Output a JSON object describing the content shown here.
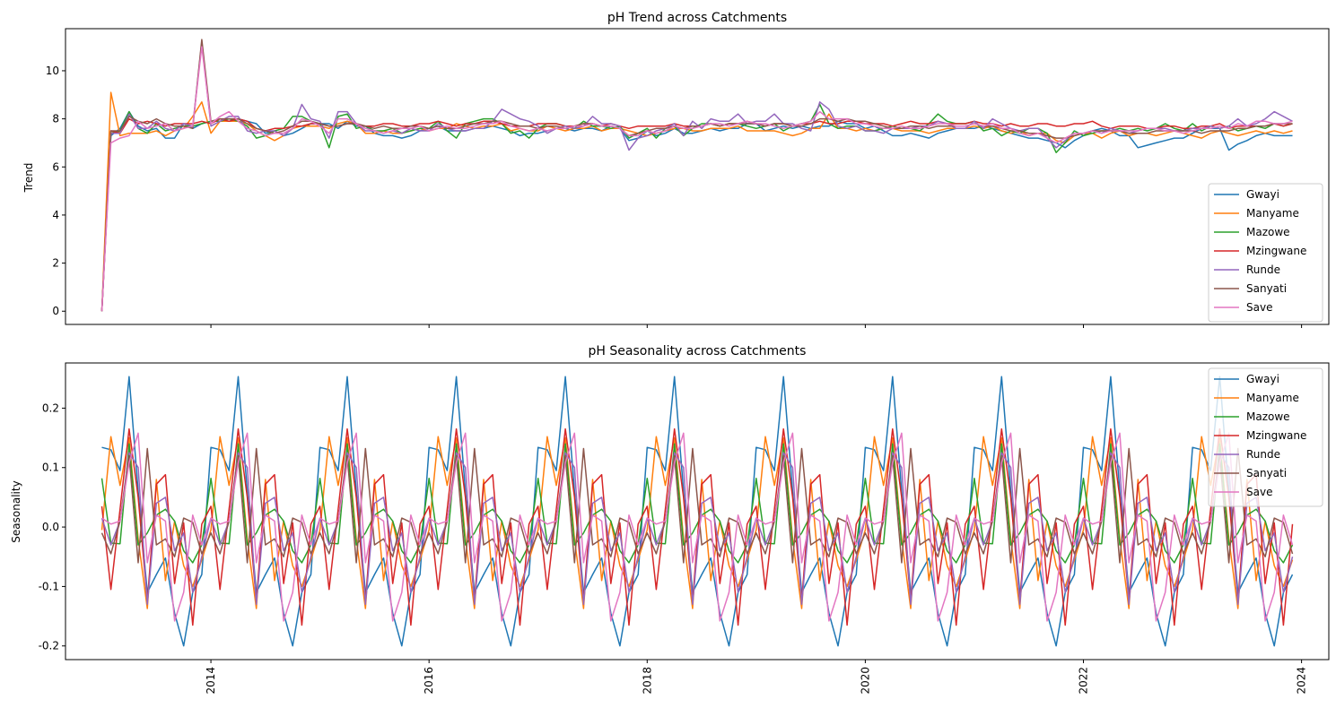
{
  "chart_data": [
    {
      "type": "line",
      "title": "pH Trend across Catchments",
      "xlabel": "",
      "ylabel": "Trend",
      "ylim": [
        -0.55,
        11.75
      ],
      "yticks": [
        0,
        2,
        4,
        6,
        8,
        10
      ],
      "xlim": [
        "2012-09",
        "2024-04"
      ],
      "x_start": "2013-01",
      "x_freq": "monthly",
      "legend": "lower-right",
      "grid": false,
      "series": [
        {
          "name": "Gwayi",
          "color": "#1f77b4",
          "values": [
            0,
            7.3,
            7.6,
            8.3,
            7.7,
            7.5,
            7.6,
            7.2,
            7.2,
            7.8,
            7.6,
            7.8,
            7.9,
            7.9,
            7.9,
            8.0,
            7.9,
            7.8,
            7.4,
            7.5,
            7.3,
            7.4,
            7.6,
            7.8,
            7.8,
            7.8,
            7.6,
            7.9,
            7.7,
            7.7,
            7.4,
            7.3,
            7.3,
            7.2,
            7.3,
            7.5,
            7.6,
            7.7,
            7.5,
            7.5,
            7.5,
            7.6,
            7.6,
            7.7,
            7.6,
            7.5,
            7.3,
            7.4,
            7.4,
            7.5,
            7.6,
            7.6,
            7.5,
            7.6,
            7.6,
            7.5,
            7.7,
            7.6,
            7.1,
            7.2,
            7.5,
            7.3,
            7.4,
            7.6,
            7.4,
            7.4,
            7.5,
            7.6,
            7.5,
            7.6,
            7.6,
            7.8,
            7.8,
            7.5,
            7.6,
            7.7,
            7.6,
            7.7,
            7.6,
            7.7,
            7.7,
            7.9,
            7.8,
            7.8,
            7.6,
            7.7,
            7.5,
            7.3,
            7.3,
            7.4,
            7.3,
            7.2,
            7.4,
            7.5,
            7.6,
            7.6,
            7.6,
            7.7,
            7.6,
            7.5,
            7.4,
            7.3,
            7.2,
            7.2,
            7.1,
            7.0,
            6.8,
            7.1,
            7.3,
            7.5,
            7.6,
            7.5,
            7.3,
            7.3,
            6.8,
            6.9,
            7.0,
            7.1,
            7.2,
            7.2,
            7.4,
            7.6,
            7.6,
            7.6,
            6.7,
            6.95,
            7.1,
            7.3,
            7.4,
            7.3,
            7.3,
            7.3
          ]
        },
        {
          "name": "Manyame",
          "color": "#ff7f0e",
          "values": [
            0,
            9.1,
            7.3,
            7.4,
            7.4,
            7.4,
            7.5,
            7.3,
            7.5,
            7.6,
            8.1,
            8.7,
            7.4,
            7.9,
            7.9,
            7.9,
            7.8,
            7.5,
            7.3,
            7.1,
            7.3,
            7.6,
            7.7,
            7.7,
            7.7,
            7.6,
            7.8,
            7.9,
            7.8,
            7.4,
            7.4,
            7.5,
            7.4,
            7.4,
            7.5,
            7.6,
            7.5,
            7.6,
            7.6,
            7.8,
            7.7,
            7.6,
            7.7,
            7.7,
            7.8,
            7.5,
            7.6,
            7.5,
            7.5,
            7.7,
            7.6,
            7.5,
            7.6,
            7.6,
            7.7,
            7.5,
            7.6,
            7.6,
            7.5,
            7.4,
            7.3,
            7.4,
            7.5,
            7.6,
            7.6,
            7.5,
            7.5,
            7.6,
            7.6,
            7.6,
            7.7,
            7.5,
            7.5,
            7.5,
            7.5,
            7.4,
            7.3,
            7.4,
            7.6,
            7.6,
            8.2,
            7.6,
            7.6,
            7.5,
            7.6,
            7.5,
            7.6,
            7.6,
            7.5,
            7.5,
            7.5,
            7.4,
            7.5,
            7.6,
            7.6,
            7.6,
            7.7,
            7.6,
            7.7,
            7.5,
            7.4,
            7.5,
            7.3,
            7.4,
            7.4,
            7.1,
            7.0,
            7.3,
            7.4,
            7.4,
            7.2,
            7.4,
            7.5,
            7.3,
            7.4,
            7.4,
            7.3,
            7.4,
            7.5,
            7.4,
            7.3,
            7.2,
            7.4,
            7.5,
            7.4,
            7.3,
            7.4,
            7.5,
            7.4,
            7.5,
            7.4,
            7.5
          ]
        },
        {
          "name": "Mazowe",
          "color": "#2ca02c",
          "values": [
            0,
            7.4,
            7.5,
            8.3,
            7.6,
            7.4,
            7.8,
            7.5,
            7.6,
            7.7,
            7.7,
            7.8,
            7.9,
            7.9,
            8.0,
            7.9,
            7.7,
            7.2,
            7.3,
            7.5,
            7.6,
            8.1,
            8.1,
            7.9,
            7.8,
            6.8,
            8.1,
            8.2,
            7.6,
            7.7,
            7.5,
            7.5,
            7.6,
            7.4,
            7.5,
            7.6,
            7.6,
            7.9,
            7.5,
            7.2,
            7.8,
            7.9,
            8.0,
            8.0,
            7.8,
            7.4,
            7.5,
            7.2,
            7.6,
            7.8,
            7.8,
            7.7,
            7.6,
            7.9,
            7.7,
            7.7,
            7.6,
            7.7,
            7.2,
            7.4,
            7.6,
            7.2,
            7.6,
            7.7,
            7.3,
            7.6,
            7.8,
            7.8,
            7.7,
            7.8,
            7.8,
            7.7,
            7.6,
            7.7,
            7.8,
            7.5,
            7.7,
            7.8,
            7.9,
            8.6,
            7.8,
            7.6,
            7.7,
            7.7,
            7.5,
            7.5,
            7.6,
            7.7,
            7.6,
            7.6,
            7.5,
            7.8,
            8.2,
            7.9,
            7.8,
            7.8,
            7.9,
            7.5,
            7.6,
            7.3,
            7.5,
            7.4,
            7.6,
            7.6,
            7.4,
            6.6,
            7.0,
            7.5,
            7.3,
            7.4,
            7.5,
            7.5,
            7.6,
            7.5,
            7.6,
            7.5,
            7.6,
            7.8,
            7.6,
            7.5,
            7.8,
            7.5,
            7.7,
            7.6,
            7.7,
            7.5,
            7.6,
            7.7,
            7.6,
            7.8,
            7.7,
            7.8
          ]
        },
        {
          "name": "Mzingwane",
          "color": "#d62728",
          "values": [
            0,
            7.5,
            7.4,
            8.0,
            7.8,
            7.9,
            7.8,
            7.7,
            7.8,
            7.8,
            7.8,
            7.9,
            7.8,
            8.0,
            7.9,
            8.0,
            7.9,
            7.6,
            7.5,
            7.6,
            7.6,
            7.7,
            7.7,
            7.8,
            7.8,
            7.7,
            7.7,
            7.8,
            7.8,
            7.7,
            7.7,
            7.8,
            7.8,
            7.7,
            7.7,
            7.8,
            7.8,
            7.9,
            7.8,
            7.7,
            7.8,
            7.8,
            7.9,
            7.9,
            7.8,
            7.7,
            7.7,
            7.7,
            7.8,
            7.8,
            7.8,
            7.7,
            7.7,
            7.8,
            7.8,
            7.7,
            7.8,
            7.7,
            7.6,
            7.7,
            7.7,
            7.7,
            7.7,
            7.8,
            7.7,
            7.7,
            7.7,
            7.8,
            7.7,
            7.8,
            7.8,
            7.9,
            7.8,
            7.7,
            7.8,
            7.8,
            7.7,
            7.8,
            7.8,
            7.9,
            7.8,
            7.8,
            7.9,
            7.9,
            7.8,
            7.8,
            7.8,
            7.7,
            7.8,
            7.9,
            7.8,
            7.8,
            7.9,
            7.8,
            7.8,
            7.8,
            7.9,
            7.8,
            7.8,
            7.7,
            7.8,
            7.7,
            7.7,
            7.8,
            7.8,
            7.7,
            7.7,
            7.8,
            7.8,
            7.9,
            7.7,
            7.6,
            7.7,
            7.7,
            7.7,
            7.6,
            7.6,
            7.7,
            7.7,
            7.6,
            7.6,
            7.7,
            7.7,
            7.8,
            7.6,
            7.7,
            7.7,
            7.7,
            7.7,
            7.8,
            7.7,
            7.8
          ]
        },
        {
          "name": "Runde",
          "color": "#9467bd",
          "values": [
            0,
            7.4,
            7.4,
            8.2,
            7.6,
            7.6,
            7.9,
            7.6,
            7.5,
            7.8,
            7.7,
            11.2,
            7.7,
            7.9,
            8.1,
            8.1,
            7.5,
            7.4,
            7.5,
            7.5,
            7.3,
            7.6,
            8.6,
            8.0,
            7.9,
            7.2,
            8.3,
            8.3,
            7.8,
            7.5,
            7.5,
            7.4,
            7.5,
            7.4,
            7.6,
            7.5,
            7.5,
            7.8,
            7.6,
            7.5,
            7.5,
            7.6,
            7.6,
            7.9,
            8.4,
            8.2,
            8.0,
            7.9,
            7.7,
            7.4,
            7.6,
            7.7,
            7.6,
            7.7,
            8.1,
            7.8,
            7.8,
            7.7,
            6.7,
            7.2,
            7.3,
            7.5,
            7.6,
            7.8,
            7.3,
            7.9,
            7.6,
            8.0,
            7.9,
            7.9,
            8.2,
            7.8,
            7.9,
            7.9,
            8.2,
            7.8,
            7.8,
            7.6,
            7.5,
            8.7,
            8.4,
            7.7,
            7.6,
            7.7,
            7.5,
            7.5,
            7.4,
            7.6,
            7.6,
            7.6,
            7.7,
            7.7,
            7.9,
            7.8,
            7.6,
            7.6,
            7.9,
            7.6,
            8.0,
            7.8,
            7.6,
            7.5,
            7.6,
            7.6,
            7.2,
            6.8,
            7.1,
            7.4,
            7.4,
            7.5,
            7.4,
            7.6,
            7.5,
            7.4,
            7.5,
            7.6,
            7.6,
            7.6,
            7.5,
            7.5,
            7.6,
            7.6,
            7.7,
            7.6,
            7.7,
            8.0,
            7.7,
            7.8,
            8.0,
            8.3,
            8.1,
            7.9
          ]
        },
        {
          "name": "Sanyati",
          "color": "#8c564b",
          "values": [
            0,
            7.5,
            7.5,
            8.1,
            7.9,
            7.8,
            8.0,
            7.8,
            7.7,
            7.7,
            7.6,
            11.3,
            7.9,
            8.0,
            8.0,
            8.0,
            7.8,
            7.6,
            7.5,
            7.4,
            7.5,
            7.7,
            7.9,
            7.9,
            7.8,
            7.7,
            7.7,
            7.8,
            7.8,
            7.7,
            7.6,
            7.7,
            7.6,
            7.6,
            7.7,
            7.7,
            7.6,
            7.7,
            7.6,
            7.6,
            7.7,
            7.8,
            7.8,
            7.9,
            7.9,
            7.8,
            7.7,
            7.7,
            7.6,
            7.7,
            7.7,
            7.6,
            7.7,
            7.8,
            7.8,
            7.7,
            7.7,
            7.6,
            7.3,
            7.4,
            7.5,
            7.6,
            7.6,
            7.7,
            7.6,
            7.7,
            7.7,
            7.8,
            7.7,
            7.8,
            7.8,
            7.8,
            7.8,
            7.7,
            7.8,
            7.8,
            7.7,
            7.7,
            7.8,
            8.0,
            8.0,
            7.9,
            8.0,
            7.9,
            7.9,
            7.8,
            7.7,
            7.6,
            7.6,
            7.7,
            7.7,
            7.6,
            7.7,
            7.7,
            7.7,
            7.7,
            7.8,
            7.7,
            7.7,
            7.6,
            7.5,
            7.5,
            7.4,
            7.4,
            7.3,
            7.2,
            7.2,
            7.3,
            7.4,
            7.5,
            7.5,
            7.5,
            7.5,
            7.4,
            7.4,
            7.4,
            7.5,
            7.5,
            7.5,
            7.5,
            7.5,
            7.4,
            7.5,
            7.5,
            7.5,
            7.6,
            7.6,
            7.7,
            7.7,
            7.8,
            7.8,
            7.8
          ]
        },
        {
          "name": "Save",
          "color": "#e377c2",
          "values": [
            0,
            7.0,
            7.2,
            7.3,
            7.9,
            7.6,
            7.7,
            7.8,
            7.5,
            7.6,
            7.7,
            11.0,
            7.8,
            8.1,
            8.3,
            7.9,
            7.6,
            7.5,
            7.3,
            7.4,
            7.4,
            7.6,
            8.0,
            7.9,
            7.7,
            7.4,
            8.0,
            8.0,
            7.8,
            7.6,
            7.5,
            7.4,
            7.5,
            7.6,
            7.6,
            7.7,
            7.5,
            7.6,
            7.7,
            7.6,
            7.6,
            7.7,
            7.8,
            7.8,
            7.9,
            7.7,
            7.6,
            7.5,
            7.6,
            7.5,
            7.6,
            7.6,
            7.7,
            7.7,
            7.8,
            7.7,
            7.7,
            7.6,
            7.3,
            7.3,
            7.5,
            7.4,
            7.5,
            7.7,
            7.6,
            7.6,
            7.7,
            7.8,
            7.8,
            7.7,
            7.8,
            7.9,
            7.8,
            7.8,
            7.7,
            7.6,
            7.7,
            7.8,
            7.9,
            8.3,
            8.0,
            8.0,
            8.0,
            7.8,
            7.8,
            7.7,
            7.6,
            7.6,
            7.7,
            7.6,
            7.6,
            7.7,
            7.8,
            7.8,
            7.7,
            7.7,
            7.8,
            7.7,
            7.8,
            7.6,
            7.6,
            7.4,
            7.3,
            7.4,
            7.2,
            7.0,
            7.2,
            7.4,
            7.4,
            7.5,
            7.4,
            7.5,
            7.5,
            7.5,
            7.5,
            7.6,
            7.6,
            7.5,
            7.5,
            7.4,
            7.5,
            7.6,
            7.6,
            7.7,
            7.6,
            7.8,
            7.7,
            7.9,
            7.9,
            7.8,
            7.8,
            7.9
          ]
        }
      ]
    },
    {
      "type": "line",
      "title": "pH Seasonality across Catchments",
      "xlabel": "",
      "ylabel": "Seasonality",
      "ylim": [
        -0.223,
        0.276
      ],
      "yticks": [
        -0.2,
        -0.1,
        0.0,
        0.1,
        0.2
      ],
      "xlim": [
        "2012-09",
        "2024-04"
      ],
      "xticks": [
        "2014",
        "2016",
        "2018",
        "2020",
        "2022",
        "2024"
      ],
      "x_start": "2013-01",
      "x_freq": "monthly",
      "legend": "upper-right",
      "grid": false,
      "repeat_years": 11,
      "series": [
        {
          "name": "Gwayi",
          "color": "#1f77b4",
          "season": [
            0.134,
            0.13,
            0.095,
            0.253,
            0.06,
            -0.11,
            -0.08,
            -0.052,
            -0.145,
            -0.2,
            -0.11,
            -0.08
          ]
        },
        {
          "name": "Manyame",
          "color": "#ff7f0e",
          "season": [
            -0.005,
            0.152,
            0.07,
            0.15,
            -0.02,
            -0.137,
            0.08,
            -0.09,
            0.01,
            -0.065,
            -0.1,
            -0.055
          ]
        },
        {
          "name": "Mazowe",
          "color": "#2ca02c",
          "season": [
            0.082,
            -0.027,
            -0.028,
            0.14,
            -0.03,
            -0.01,
            0.02,
            0.03,
            0.01,
            -0.04,
            -0.06,
            -0.03
          ]
        },
        {
          "name": "Mzingwane",
          "color": "#d62728",
          "season": [
            0.035,
            -0.105,
            0.03,
            0.165,
            0.05,
            -0.125,
            0.072,
            0.088,
            -0.095,
            0.007,
            -0.165,
            0.005
          ]
        },
        {
          "name": "Runde",
          "color": "#9467bd",
          "season": [
            0.015,
            -0.03,
            0.01,
            0.125,
            0.1,
            -0.13,
            0.04,
            0.05,
            -0.04,
            -0.01,
            -0.11,
            -0.05
          ]
        },
        {
          "name": "Sanyati",
          "color": "#8c564b",
          "season": [
            -0.01,
            -0.045,
            0.01,
            0.12,
            -0.06,
            0.132,
            -0.03,
            -0.02,
            -0.05,
            0.015,
            0.008,
            -0.045
          ]
        },
        {
          "name": "Save",
          "color": "#e377c2",
          "season": [
            0.015,
            0.005,
            0.01,
            0.108,
            0.158,
            -0.06,
            0.02,
            0.01,
            -0.158,
            -0.11,
            0.02,
            -0.03
          ]
        }
      ]
    }
  ]
}
